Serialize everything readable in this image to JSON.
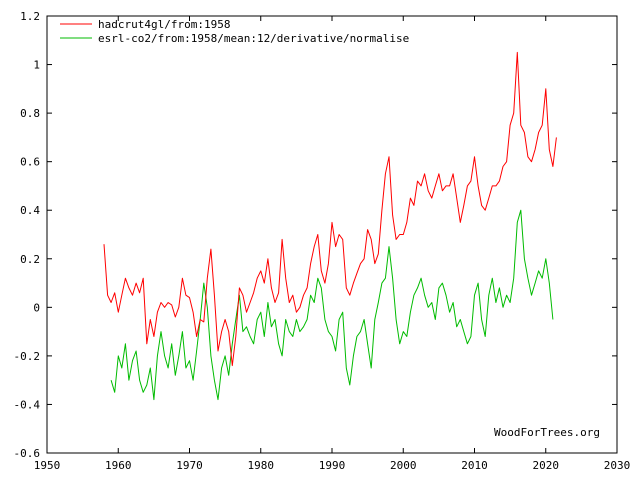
{
  "chart_data": {
    "type": "line",
    "title": "",
    "xlabel": "",
    "ylabel": "",
    "xlim": [
      1950,
      2030
    ],
    "ylim": [
      -0.6,
      1.2
    ],
    "x_ticks": [
      1950,
      1960,
      1970,
      1980,
      1990,
      2000,
      2010,
      2020,
      2030
    ],
    "y_ticks": [
      -0.6,
      -0.4,
      -0.2,
      0,
      0.2,
      0.4,
      0.6,
      0.8,
      1,
      1.2
    ],
    "y_tick_labels": [
      "-0.6",
      "-0.4",
      "-0.2",
      "0",
      "0.2",
      "0.4",
      "0.6",
      "0.8",
      "1",
      "1.2"
    ],
    "x_tick_labels": [
      "1950",
      "1960",
      "1970",
      "1980",
      "1990",
      "2000",
      "2010",
      "2020",
      "2030"
    ],
    "grid": false,
    "legend_position": "top-left",
    "watermark": "WoodForTrees.org",
    "series": [
      {
        "name": "hadcrut4gl/from:1958",
        "color": "#ff0000",
        "x": [
          1958.0,
          1958.5,
          1959.0,
          1959.5,
          1960.0,
          1960.5,
          1961.0,
          1961.5,
          1962.0,
          1962.5,
          1963.0,
          1963.5,
          1964.0,
          1964.5,
          1965.0,
          1965.5,
          1966.0,
          1966.5,
          1967.0,
          1967.5,
          1968.0,
          1968.5,
          1969.0,
          1969.5,
          1970.0,
          1970.5,
          1971.0,
          1971.5,
          1972.0,
          1972.5,
          1973.0,
          1973.5,
          1974.0,
          1974.5,
          1975.0,
          1975.5,
          1976.0,
          1976.5,
          1977.0,
          1977.5,
          1978.0,
          1978.5,
          1979.0,
          1979.5,
          1980.0,
          1980.5,
          1981.0,
          1981.5,
          1982.0,
          1982.5,
          1983.0,
          1983.5,
          1984.0,
          1984.5,
          1985.0,
          1985.5,
          1986.0,
          1986.5,
          1987.0,
          1987.5,
          1988.0,
          1988.5,
          1989.0,
          1989.5,
          1990.0,
          1990.5,
          1991.0,
          1991.5,
          1992.0,
          1992.5,
          1993.0,
          1993.5,
          1994.0,
          1994.5,
          1995.0,
          1995.5,
          1996.0,
          1996.5,
          1997.0,
          1997.5,
          1998.0,
          1998.5,
          1999.0,
          1999.5,
          2000.0,
          2000.5,
          2001.0,
          2001.5,
          2002.0,
          2002.5,
          2003.0,
          2003.5,
          2004.0,
          2004.5,
          2005.0,
          2005.5,
          2006.0,
          2006.5,
          2007.0,
          2007.5,
          2008.0,
          2008.5,
          2009.0,
          2009.5,
          2010.0,
          2010.5,
          2011.0,
          2011.5,
          2012.0,
          2012.5,
          2013.0,
          2013.5,
          2014.0,
          2014.5,
          2015.0,
          2015.5,
          2016.0,
          2016.5,
          2017.0,
          2017.5,
          2018.0,
          2018.5,
          2019.0,
          2019.5,
          2020.0,
          2020.5,
          2021.0,
          2021.5
        ],
        "y": [
          0.26,
          0.05,
          0.02,
          0.06,
          -0.02,
          0.05,
          0.12,
          0.08,
          0.05,
          0.1,
          0.06,
          0.12,
          -0.15,
          -0.05,
          -0.12,
          -0.02,
          0.02,
          0.0,
          0.02,
          0.01,
          -0.04,
          0.0,
          0.12,
          0.05,
          0.04,
          -0.02,
          -0.12,
          -0.05,
          -0.06,
          0.12,
          0.24,
          0.05,
          -0.18,
          -0.1,
          -0.05,
          -0.1,
          -0.24,
          -0.12,
          0.08,
          0.05,
          -0.02,
          0.02,
          0.06,
          0.12,
          0.15,
          0.1,
          0.2,
          0.08,
          0.02,
          0.06,
          0.28,
          0.12,
          0.02,
          0.05,
          -0.02,
          0.0,
          0.05,
          0.08,
          0.18,
          0.25,
          0.3,
          0.15,
          0.1,
          0.18,
          0.35,
          0.25,
          0.3,
          0.28,
          0.08,
          0.05,
          0.1,
          0.14,
          0.18,
          0.2,
          0.32,
          0.28,
          0.18,
          0.22,
          0.4,
          0.55,
          0.62,
          0.38,
          0.28,
          0.3,
          0.3,
          0.35,
          0.45,
          0.42,
          0.52,
          0.5,
          0.55,
          0.48,
          0.45,
          0.5,
          0.55,
          0.48,
          0.5,
          0.5,
          0.55,
          0.45,
          0.35,
          0.42,
          0.5,
          0.52,
          0.62,
          0.5,
          0.42,
          0.4,
          0.45,
          0.5,
          0.5,
          0.52,
          0.58,
          0.6,
          0.75,
          0.8,
          1.05,
          0.75,
          0.72,
          0.62,
          0.6,
          0.65,
          0.72,
          0.75,
          0.9,
          0.65,
          0.58,
          0.7
        ]
      },
      {
        "name": "esrl-co2/from:1958/mean:12/derivative/normalise",
        "color": "#00bb00",
        "x": [
          1959.0,
          1959.5,
          1960.0,
          1960.5,
          1961.0,
          1961.5,
          1962.0,
          1962.5,
          1963.0,
          1963.5,
          1964.0,
          1964.5,
          1965.0,
          1965.5,
          1966.0,
          1966.5,
          1967.0,
          1967.5,
          1968.0,
          1968.5,
          1969.0,
          1969.5,
          1970.0,
          1970.5,
          1971.0,
          1971.5,
          1972.0,
          1972.5,
          1973.0,
          1973.5,
          1974.0,
          1974.5,
          1975.0,
          1975.5,
          1976.0,
          1976.5,
          1977.0,
          1977.5,
          1978.0,
          1978.5,
          1979.0,
          1979.5,
          1980.0,
          1980.5,
          1981.0,
          1981.5,
          1982.0,
          1982.5,
          1983.0,
          1983.5,
          1984.0,
          1984.5,
          1985.0,
          1985.5,
          1986.0,
          1986.5,
          1987.0,
          1987.5,
          1988.0,
          1988.5,
          1989.0,
          1989.5,
          1990.0,
          1990.5,
          1991.0,
          1991.5,
          1992.0,
          1992.5,
          1993.0,
          1993.5,
          1994.0,
          1994.5,
          1995.0,
          1995.5,
          1996.0,
          1996.5,
          1997.0,
          1997.5,
          1998.0,
          1998.5,
          1999.0,
          1999.5,
          2000.0,
          2000.5,
          2001.0,
          2001.5,
          2002.0,
          2002.5,
          2003.0,
          2003.5,
          2004.0,
          2004.5,
          2005.0,
          2005.5,
          2006.0,
          2006.5,
          2007.0,
          2007.5,
          2008.0,
          2008.5,
          2009.0,
          2009.5,
          2010.0,
          2010.5,
          2011.0,
          2011.5,
          2012.0,
          2012.5,
          2013.0,
          2013.5,
          2014.0,
          2014.5,
          2015.0,
          2015.5,
          2016.0,
          2016.5,
          2017.0,
          2017.5,
          2018.0,
          2018.5,
          2019.0,
          2019.5,
          2020.0,
          2020.5,
          2021.0
        ],
        "y": [
          -0.3,
          -0.35,
          -0.2,
          -0.25,
          -0.15,
          -0.3,
          -0.22,
          -0.18,
          -0.3,
          -0.35,
          -0.32,
          -0.25,
          -0.38,
          -0.2,
          -0.1,
          -0.2,
          -0.25,
          -0.15,
          -0.28,
          -0.2,
          -0.1,
          -0.25,
          -0.22,
          -0.3,
          -0.18,
          -0.05,
          0.1,
          0.0,
          -0.2,
          -0.3,
          -0.38,
          -0.25,
          -0.2,
          -0.28,
          -0.15,
          -0.05,
          0.05,
          -0.1,
          -0.08,
          -0.12,
          -0.15,
          -0.05,
          -0.02,
          -0.12,
          0.02,
          -0.08,
          -0.05,
          -0.15,
          -0.2,
          -0.05,
          -0.1,
          -0.12,
          -0.05,
          -0.1,
          -0.08,
          -0.05,
          0.05,
          0.02,
          0.12,
          0.08,
          -0.05,
          -0.1,
          -0.12,
          -0.18,
          -0.05,
          -0.02,
          -0.25,
          -0.32,
          -0.2,
          -0.12,
          -0.1,
          -0.05,
          -0.15,
          -0.25,
          -0.05,
          0.02,
          0.1,
          0.12,
          0.25,
          0.12,
          -0.05,
          -0.15,
          -0.1,
          -0.12,
          -0.02,
          0.05,
          0.08,
          0.12,
          0.05,
          0.0,
          0.02,
          -0.05,
          0.08,
          0.1,
          0.05,
          -0.02,
          0.02,
          -0.08,
          -0.05,
          -0.1,
          -0.15,
          -0.12,
          0.05,
          0.1,
          -0.05,
          -0.12,
          0.05,
          0.12,
          0.02,
          0.08,
          0.0,
          0.05,
          0.02,
          0.12,
          0.35,
          0.4,
          0.2,
          0.12,
          0.05,
          0.1,
          0.15,
          0.12,
          0.2,
          0.1,
          -0.05
        ]
      }
    ]
  }
}
